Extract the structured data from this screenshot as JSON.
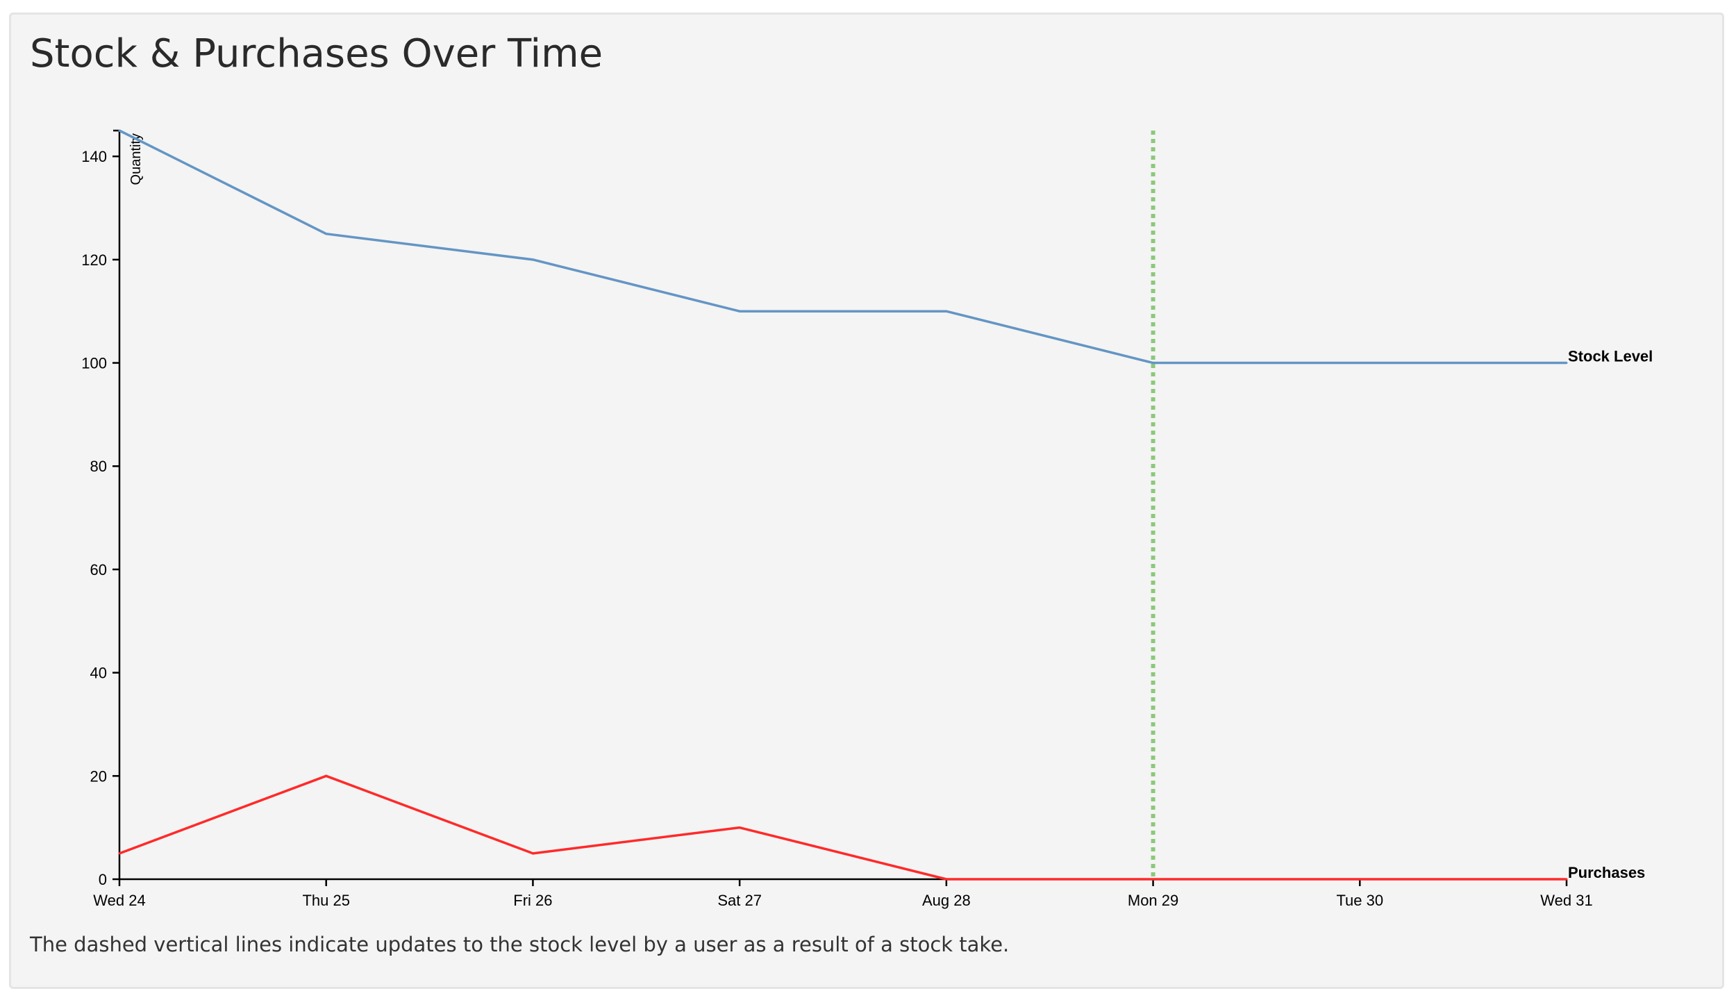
{
  "panel": {
    "title": "Stock & Purchases Over Time",
    "caption": "The dashed vertical lines indicate updates to the stock level by a user as a result of a stock take."
  },
  "chart_data": {
    "type": "line",
    "title": "Stock & Purchases Over Time",
    "xlabel": "",
    "ylabel": "Quantity",
    "ylim": [
      0,
      145
    ],
    "yticks": [
      0,
      20,
      40,
      60,
      80,
      100,
      120,
      140
    ],
    "categories": [
      "Wed 24",
      "Thu 25",
      "Fri 26",
      "Sat 27",
      "Aug 28",
      "Mon 29",
      "Tue 30",
      "Wed 31"
    ],
    "series": [
      {
        "name": "Stock Level",
        "color": "#6495c4",
        "values": [
          145,
          125,
          120,
          110,
          110,
          100,
          100,
          100
        ]
      },
      {
        "name": "Purchases",
        "color": "#ff2a2a",
        "values": [
          5,
          20,
          5,
          10,
          0,
          0,
          0,
          0
        ]
      }
    ],
    "stock_take_markers": [
      {
        "category": "Mon 29",
        "color": "#8dc87b"
      }
    ],
    "grid": false
  }
}
